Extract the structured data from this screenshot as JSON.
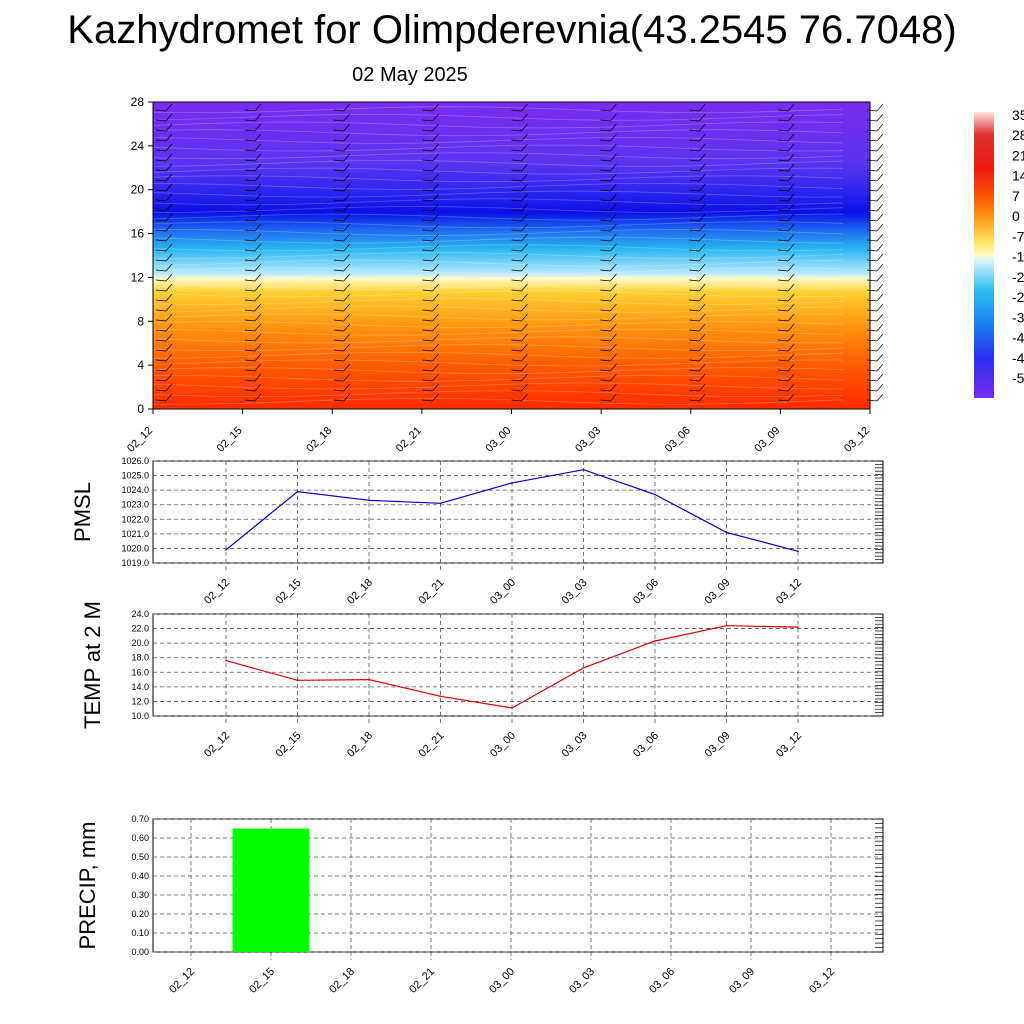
{
  "header": {
    "title": "Kazhydromet for Olimpderevnia(43.2545 76.7048)",
    "subtitle": "02 May 2025"
  },
  "colors": {
    "pmsl_line": "#0000cc",
    "temp_line": "#dd0000",
    "precip_bar": "#00ff00",
    "grid": "#555555"
  },
  "chart_data": [
    {
      "type": "heatmap",
      "name": "cross-section",
      "xlabel": "",
      "ylabel": "",
      "x_ticks": [
        "02_12",
        "02_15",
        "02_18",
        "02_21",
        "03_00",
        "03_03",
        "03_06",
        "03_09",
        "03_12"
      ],
      "y_ticks": [
        "0",
        "4",
        "8",
        "12",
        "16",
        "20",
        "24",
        "28"
      ],
      "ylim": [
        0,
        28
      ],
      "colorbar_labels": [
        "35",
        "28",
        "21",
        "14",
        "7",
        "0",
        "-7",
        "-1",
        "-2",
        "-2",
        "-3",
        "-4",
        "-4",
        "-5"
      ],
      "wind_barbs": "shown at each time column"
    },
    {
      "type": "line",
      "name": "pmsl",
      "ylabel": "PMSL",
      "categories": [
        "02_12",
        "02_15",
        "02_18",
        "02_21",
        "03_00",
        "03_03",
        "03_06",
        "03_09",
        "03_12"
      ],
      "values": [
        1019.9,
        1023.9,
        1023.3,
        1023.1,
        1024.5,
        1025.4,
        1023.7,
        1021.1,
        1019.8
      ],
      "y_ticks": [
        "1019.0",
        "1020.0",
        "1021.0",
        "1022.0",
        "1023.0",
        "1024.0",
        "1025.0",
        "1026.0"
      ],
      "ylim": [
        1019,
        1026
      ],
      "grid": true
    },
    {
      "type": "line",
      "name": "temp",
      "ylabel": "TEMP at 2 M",
      "categories": [
        "02_12",
        "02_15",
        "02_18",
        "02_21",
        "03_00",
        "03_03",
        "03_06",
        "03_09",
        "03_12"
      ],
      "values": [
        17.6,
        14.9,
        15.0,
        12.7,
        11.1,
        16.6,
        20.3,
        22.4,
        22.2
      ],
      "y_ticks": [
        "10.0",
        "12.0",
        "14.0",
        "16.0",
        "18.0",
        "20.0",
        "22.0",
        "24.0"
      ],
      "ylim": [
        10,
        24
      ],
      "grid": true
    },
    {
      "type": "bar",
      "name": "precip",
      "ylabel": "PRECIP, mm",
      "categories": [
        "02_12",
        "02_15",
        "02_18",
        "02_21",
        "03_00",
        "03_03",
        "03_06",
        "03_09",
        "03_12"
      ],
      "values": [
        0,
        0.65,
        0,
        0,
        0,
        0,
        0,
        0,
        0
      ],
      "y_ticks": [
        "0.00",
        "0.10",
        "0.20",
        "0.30",
        "0.40",
        "0.50",
        "0.60",
        "0.70"
      ],
      "ylim": [
        0,
        0.7
      ],
      "grid": true
    }
  ]
}
